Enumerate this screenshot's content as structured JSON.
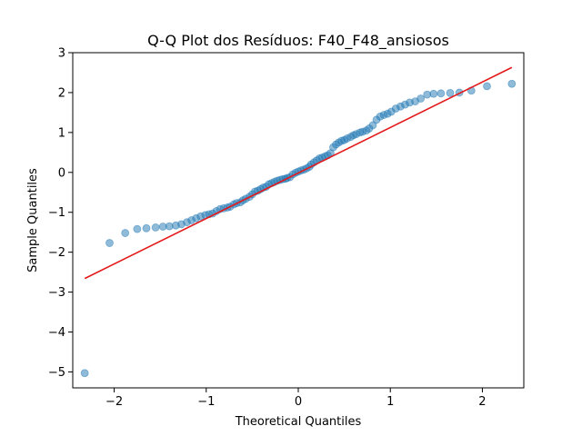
{
  "chart_data": {
    "type": "scatter",
    "title": "Q-Q Plot dos Resíduos: F40_F48_ansiosos",
    "xlabel": "Theoretical Quantiles",
    "ylabel": "Sample Quantiles",
    "xlim": [
      -2.45,
      2.45
    ],
    "ylim": [
      -5.4,
      3.0
    ],
    "xticks": [
      -2,
      -1,
      0,
      1,
      2
    ],
    "xtick_labels": [
      "−2",
      "−1",
      "0",
      "1",
      "2"
    ],
    "yticks": [
      -5,
      -4,
      -3,
      -2,
      -1,
      0,
      1,
      2,
      3
    ],
    "ytick_labels": [
      "−5",
      "−4",
      "−3",
      "−2",
      "−1",
      "0",
      "1",
      "2",
      "3"
    ],
    "grid": false,
    "point_color": "#1f77b4",
    "line_color": "#e31a1c",
    "reference_line": {
      "x": [
        -2.32,
        2.32
      ],
      "y": [
        -2.66,
        2.63
      ]
    },
    "x": [
      -2.32,
      -2.05,
      -1.88,
      -1.75,
      -1.65,
      -1.55,
      -1.47,
      -1.4,
      -1.33,
      -1.27,
      -1.21,
      -1.16,
      -1.11,
      -1.06,
      -1.01,
      -0.97,
      -0.93,
      -0.89,
      -0.85,
      -0.81,
      -0.77,
      -0.74,
      -0.7,
      -0.67,
      -0.63,
      -0.6,
      -0.57,
      -0.53,
      -0.5,
      -0.47,
      -0.44,
      -0.41,
      -0.38,
      -0.35,
      -0.32,
      -0.29,
      -0.26,
      -0.23,
      -0.2,
      -0.17,
      -0.14,
      -0.12,
      -0.09,
      -0.06,
      -0.03,
      0.0,
      0.03,
      0.06,
      0.09,
      0.12,
      0.14,
      0.17,
      0.2,
      0.23,
      0.26,
      0.29,
      0.32,
      0.35,
      0.38,
      0.41,
      0.44,
      0.47,
      0.5,
      0.53,
      0.57,
      0.6,
      0.63,
      0.67,
      0.7,
      0.74,
      0.77,
      0.81,
      0.85,
      0.89,
      0.93,
      0.97,
      1.01,
      1.06,
      1.11,
      1.16,
      1.21,
      1.27,
      1.33,
      1.4,
      1.47,
      1.55,
      1.65,
      1.75,
      1.88,
      2.05,
      2.32
    ],
    "y": [
      -5.03,
      -1.77,
      -1.52,
      -1.42,
      -1.4,
      -1.38,
      -1.36,
      -1.35,
      -1.33,
      -1.3,
      -1.25,
      -1.2,
      -1.15,
      -1.1,
      -1.07,
      -1.05,
      -1.03,
      -0.97,
      -0.92,
      -0.9,
      -0.88,
      -0.86,
      -0.8,
      -0.77,
      -0.75,
      -0.7,
      -0.66,
      -0.61,
      -0.55,
      -0.48,
      -0.46,
      -0.42,
      -0.38,
      -0.36,
      -0.3,
      -0.27,
      -0.24,
      -0.21,
      -0.19,
      -0.17,
      -0.16,
      -0.14,
      -0.12,
      -0.05,
      -0.01,
      0.02,
      0.05,
      0.07,
      0.1,
      0.14,
      0.2,
      0.25,
      0.3,
      0.35,
      0.37,
      0.4,
      0.43,
      0.48,
      0.63,
      0.7,
      0.75,
      0.79,
      0.81,
      0.85,
      0.89,
      0.93,
      0.96,
      1.0,
      1.02,
      1.05,
      1.1,
      1.18,
      1.32,
      1.4,
      1.44,
      1.47,
      1.52,
      1.6,
      1.65,
      1.7,
      1.75,
      1.78,
      1.85,
      1.95,
      1.97,
      1.98,
      1.99,
      2.0,
      2.05,
      2.16,
      2.22
    ]
  }
}
